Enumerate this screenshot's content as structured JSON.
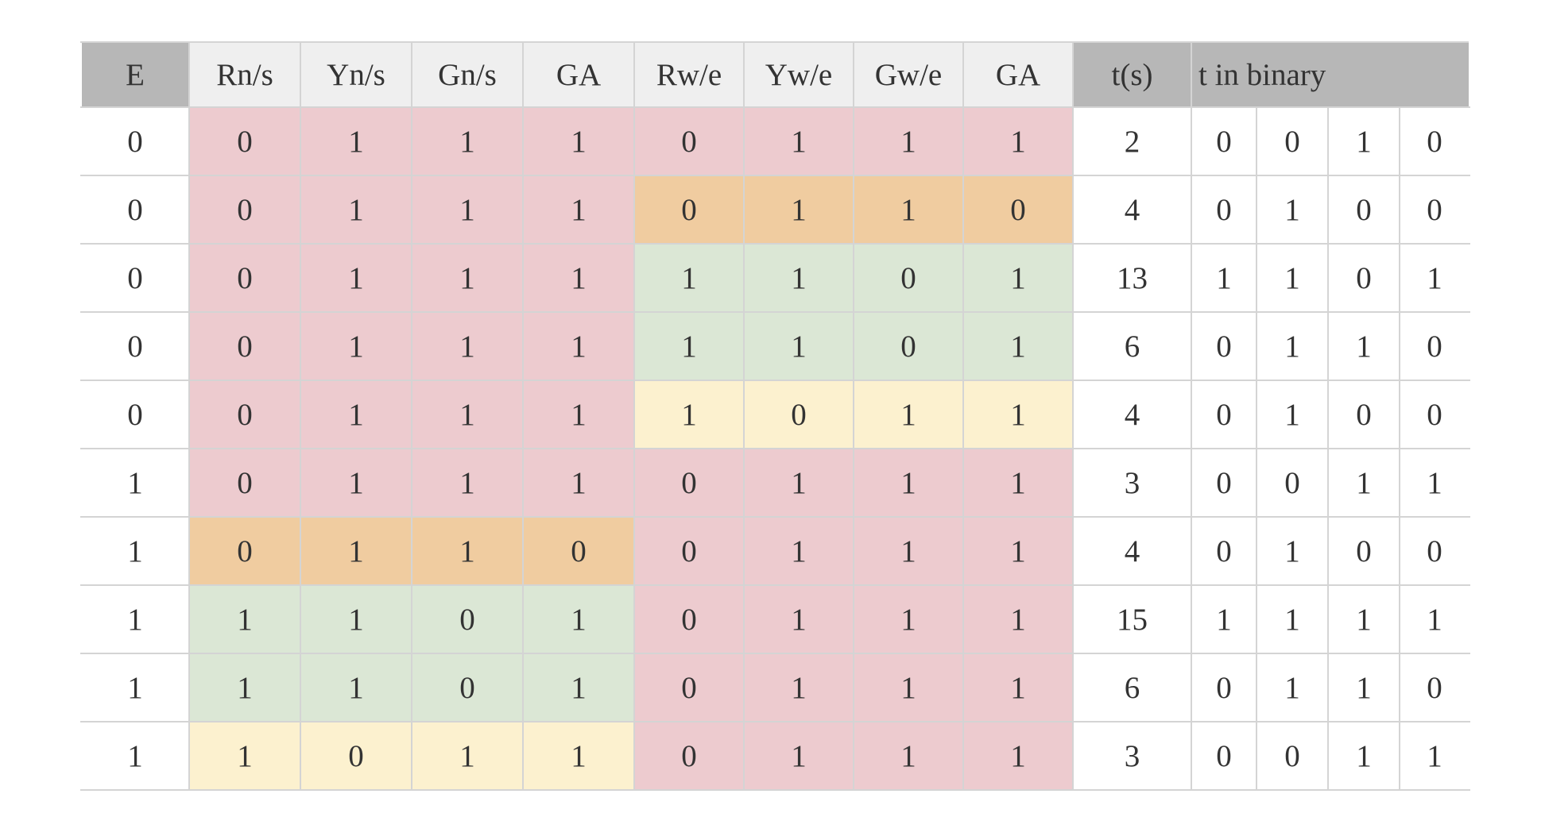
{
  "table": {
    "headers": [
      "E",
      "Rn/s",
      "Yn/s",
      "Gn/s",
      "GA",
      "Rw/e",
      "Yw/e",
      "Gw/e",
      "GA",
      "t(s)",
      "t in binary"
    ],
    "rows": [
      {
        "e": "0",
        "ns": [
          "0",
          "1",
          "1",
          "1"
        ],
        "ns_color": "red",
        "we": [
          "0",
          "1",
          "1",
          "1"
        ],
        "we_color": "red",
        "t": "2",
        "bin": [
          "0",
          "0",
          "1",
          "0"
        ]
      },
      {
        "e": "0",
        "ns": [
          "0",
          "1",
          "1",
          "1"
        ],
        "ns_color": "red",
        "we": [
          "0",
          "1",
          "1",
          "0"
        ],
        "we_color": "orange",
        "t": "4",
        "bin": [
          "0",
          "1",
          "0",
          "0"
        ]
      },
      {
        "e": "0",
        "ns": [
          "0",
          "1",
          "1",
          "1"
        ],
        "ns_color": "red",
        "we": [
          "1",
          "1",
          "0",
          "1"
        ],
        "we_color": "green",
        "t": "13",
        "bin": [
          "1",
          "1",
          "0",
          "1"
        ]
      },
      {
        "e": "0",
        "ns": [
          "0",
          "1",
          "1",
          "1"
        ],
        "ns_color": "red",
        "we": [
          "1",
          "1",
          "0",
          "1"
        ],
        "we_color": "green",
        "t": "6",
        "bin": [
          "0",
          "1",
          "1",
          "0"
        ]
      },
      {
        "e": "0",
        "ns": [
          "0",
          "1",
          "1",
          "1"
        ],
        "ns_color": "red",
        "we": [
          "1",
          "0",
          "1",
          "1"
        ],
        "we_color": "yellow",
        "t": "4",
        "bin": [
          "0",
          "1",
          "0",
          "0"
        ]
      },
      {
        "e": "1",
        "ns": [
          "0",
          "1",
          "1",
          "1"
        ],
        "ns_color": "red",
        "we": [
          "0",
          "1",
          "1",
          "1"
        ],
        "we_color": "red",
        "t": "3",
        "bin": [
          "0",
          "0",
          "1",
          "1"
        ]
      },
      {
        "e": "1",
        "ns": [
          "0",
          "1",
          "1",
          "0"
        ],
        "ns_color": "orange",
        "we": [
          "0",
          "1",
          "1",
          "1"
        ],
        "we_color": "red",
        "t": "4",
        "bin": [
          "0",
          "1",
          "0",
          "0"
        ]
      },
      {
        "e": "1",
        "ns": [
          "1",
          "1",
          "0",
          "1"
        ],
        "ns_color": "green",
        "we": [
          "0",
          "1",
          "1",
          "1"
        ],
        "we_color": "red",
        "t": "15",
        "bin": [
          "1",
          "1",
          "1",
          "1"
        ]
      },
      {
        "e": "1",
        "ns": [
          "1",
          "1",
          "0",
          "1"
        ],
        "ns_color": "green",
        "we": [
          "0",
          "1",
          "1",
          "1"
        ],
        "we_color": "red",
        "t": "6",
        "bin": [
          "0",
          "1",
          "1",
          "0"
        ]
      },
      {
        "e": "1",
        "ns": [
          "1",
          "0",
          "1",
          "1"
        ],
        "ns_color": "yellow",
        "we": [
          "0",
          "1",
          "1",
          "1"
        ],
        "we_color": "red",
        "t": "3",
        "bin": [
          "0",
          "0",
          "1",
          "1"
        ]
      }
    ]
  },
  "colors": {
    "red": "#edcbcf",
    "orange": "#f0cca0",
    "green": "#dbe7d5",
    "yellow": "#fcf1cf",
    "header_light": "#efefef",
    "header_dark": "#b7b7b7",
    "grid": "#d4d4d4"
  }
}
